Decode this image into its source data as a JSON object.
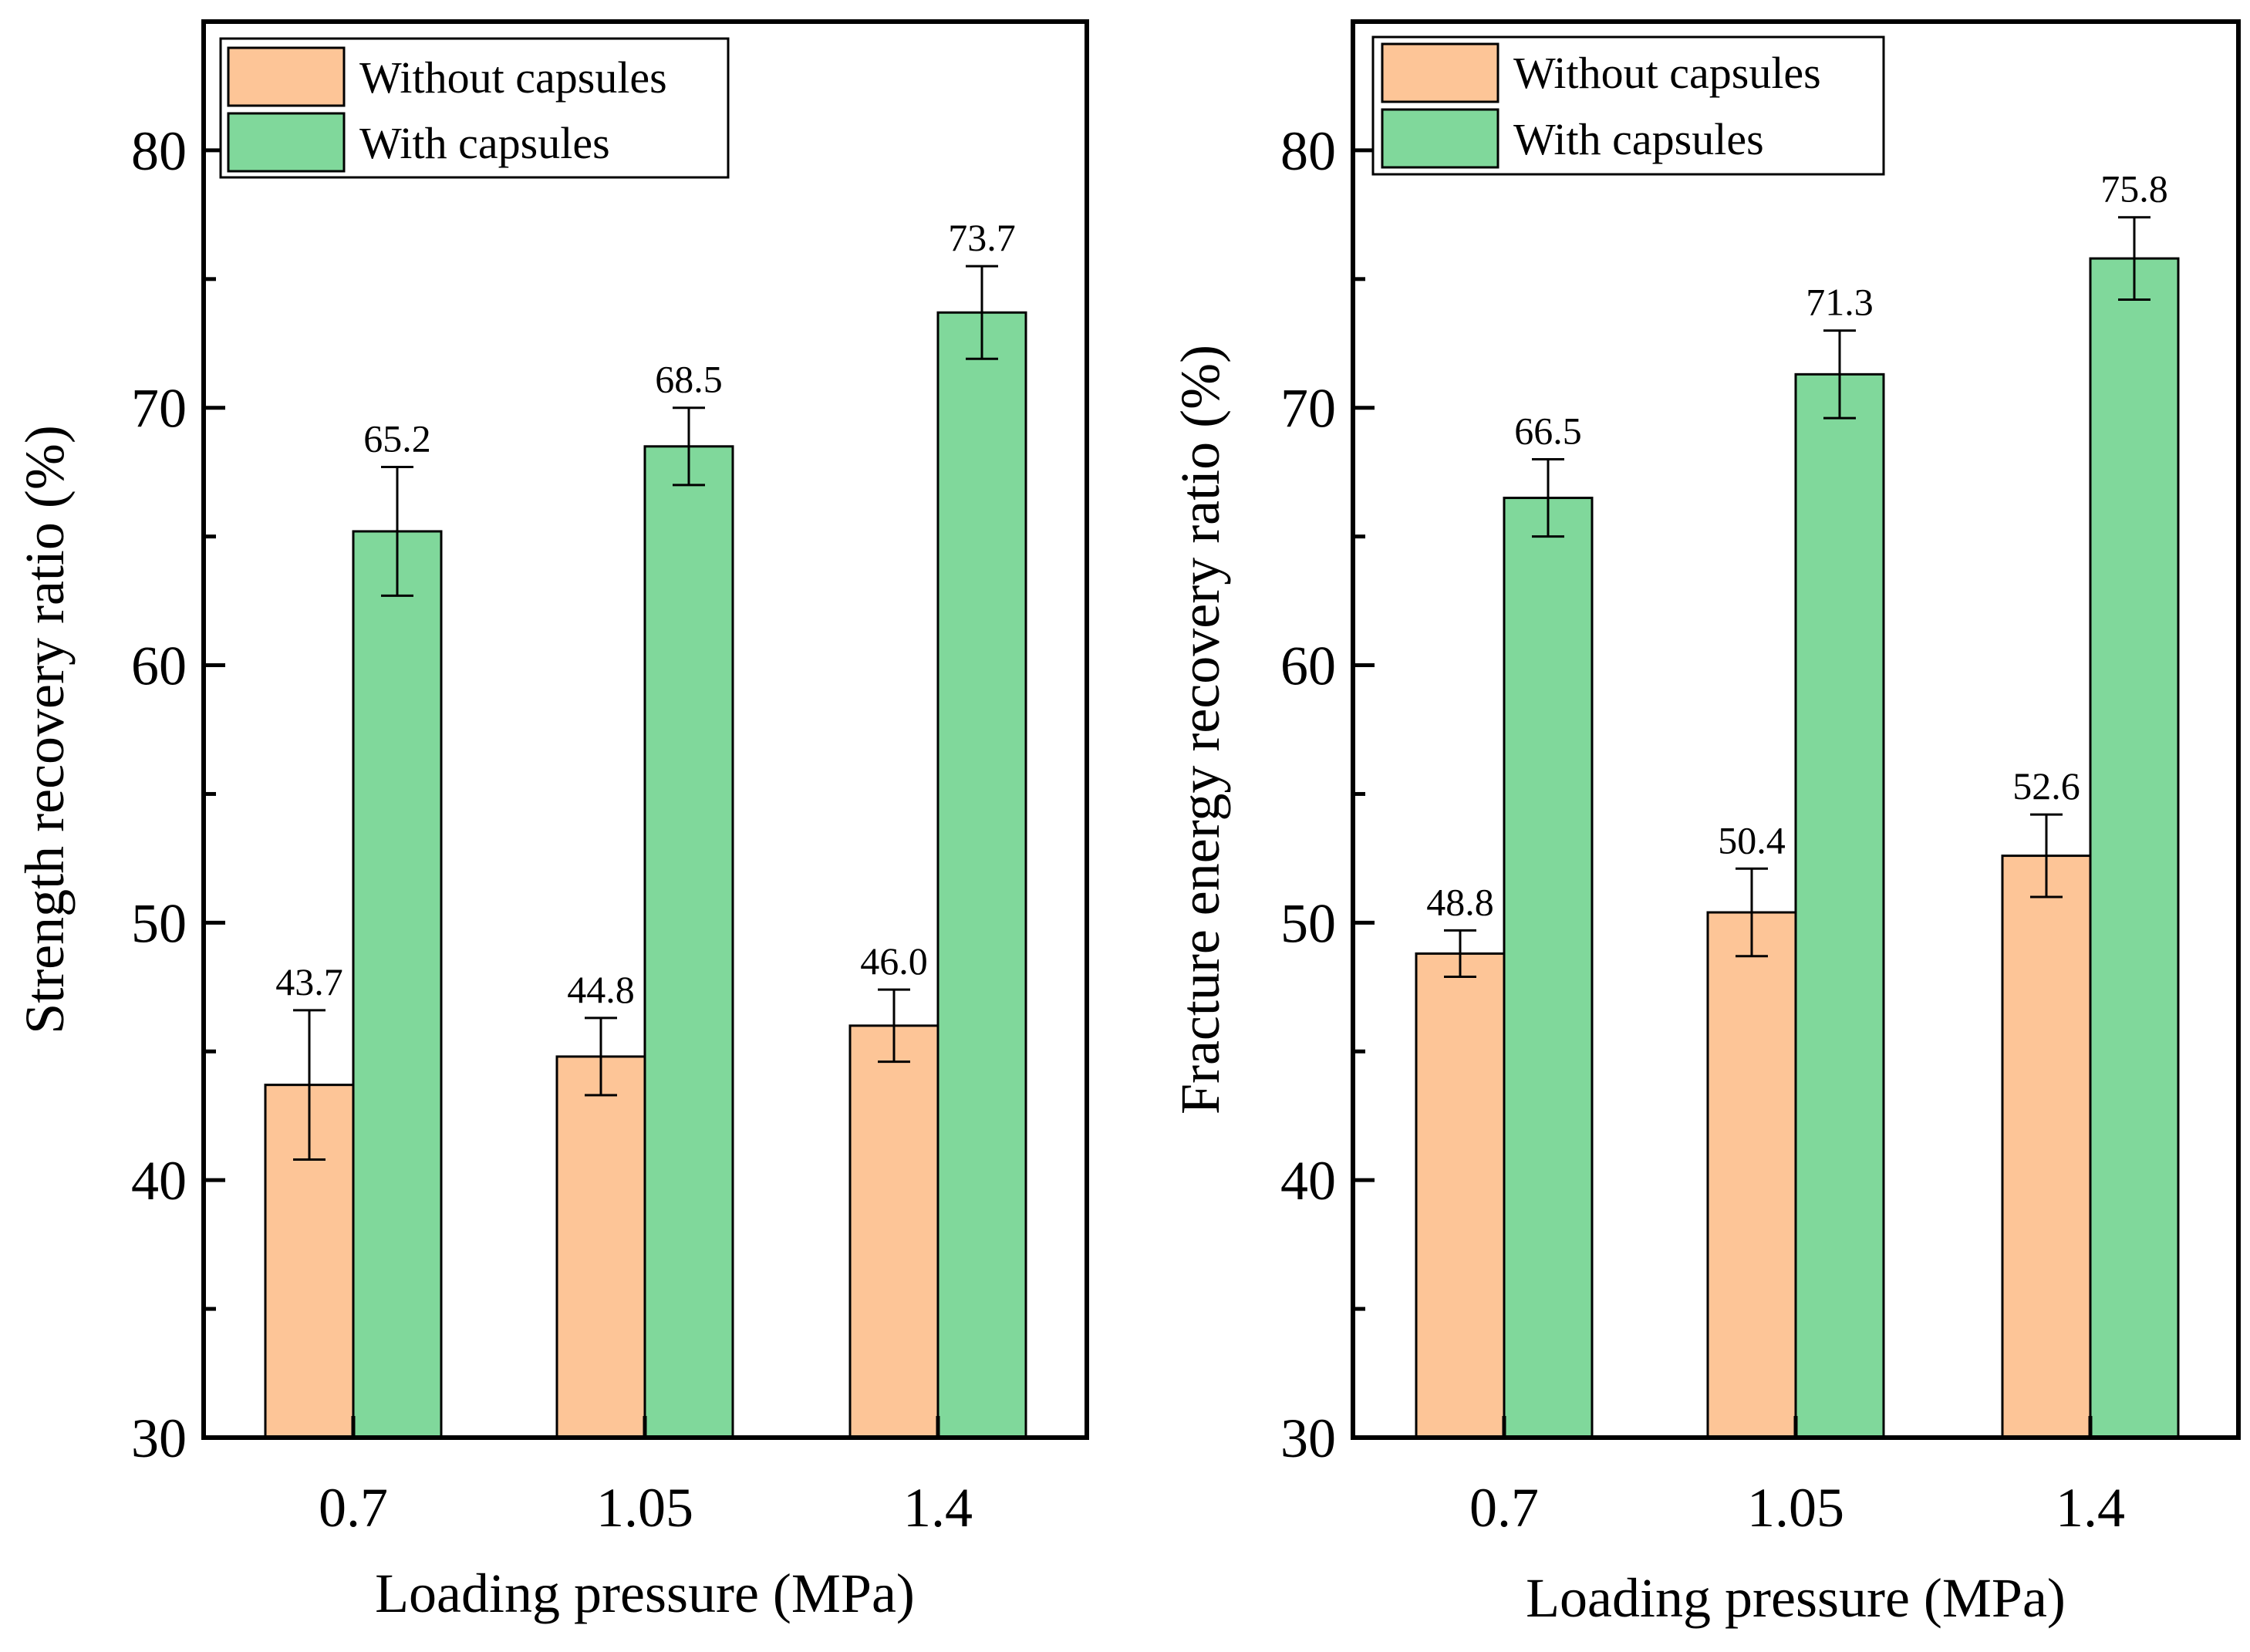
{
  "colors": {
    "without_capsules": "#fdc597",
    "with_capsules": "#80d89b",
    "axis": "#000000"
  },
  "chart_data": [
    {
      "type": "bar",
      "xlabel": "Loading pressure (MPa)",
      "ylabel": "Strength recovery ratio (%)",
      "categories": [
        "0.7",
        "1.05",
        "1.4"
      ],
      "ylim": [
        30,
        85
      ],
      "yticks": [
        "30",
        "40",
        "50",
        "60",
        "70",
        "80"
      ],
      "grid": false,
      "legend_position": "top-left",
      "series": [
        {
          "name": "Without capsules",
          "values": [
            43.7,
            44.8,
            46.0
          ],
          "error": [
            2.9,
            1.5,
            1.4
          ],
          "labels": [
            "43.7",
            "44.8",
            "46.0"
          ]
        },
        {
          "name": "With capsules",
          "values": [
            65.2,
            68.5,
            73.7
          ],
          "error": [
            2.5,
            1.5,
            1.8
          ],
          "labels": [
            "65.2",
            "68.5",
            "73.7"
          ]
        }
      ]
    },
    {
      "type": "bar",
      "xlabel": "Loading pressure (MPa)",
      "ylabel": "Fracture energy recovery ratio (%)",
      "categories": [
        "0.7",
        "1.05",
        "1.4"
      ],
      "ylim": [
        30,
        85
      ],
      "yticks": [
        "30",
        "40",
        "50",
        "60",
        "70",
        "80"
      ],
      "grid": false,
      "legend_position": "top-left",
      "series": [
        {
          "name": "Without capsules",
          "values": [
            48.8,
            50.4,
            52.6
          ],
          "error": [
            0.9,
            1.7,
            1.6
          ],
          "labels": [
            "48.8",
            "50.4",
            "52.6"
          ]
        },
        {
          "name": "With capsules",
          "values": [
            66.5,
            71.3,
            75.8
          ],
          "error": [
            1.5,
            1.7,
            1.6
          ],
          "labels": [
            "66.5",
            "71.3",
            "75.8"
          ]
        }
      ]
    }
  ]
}
